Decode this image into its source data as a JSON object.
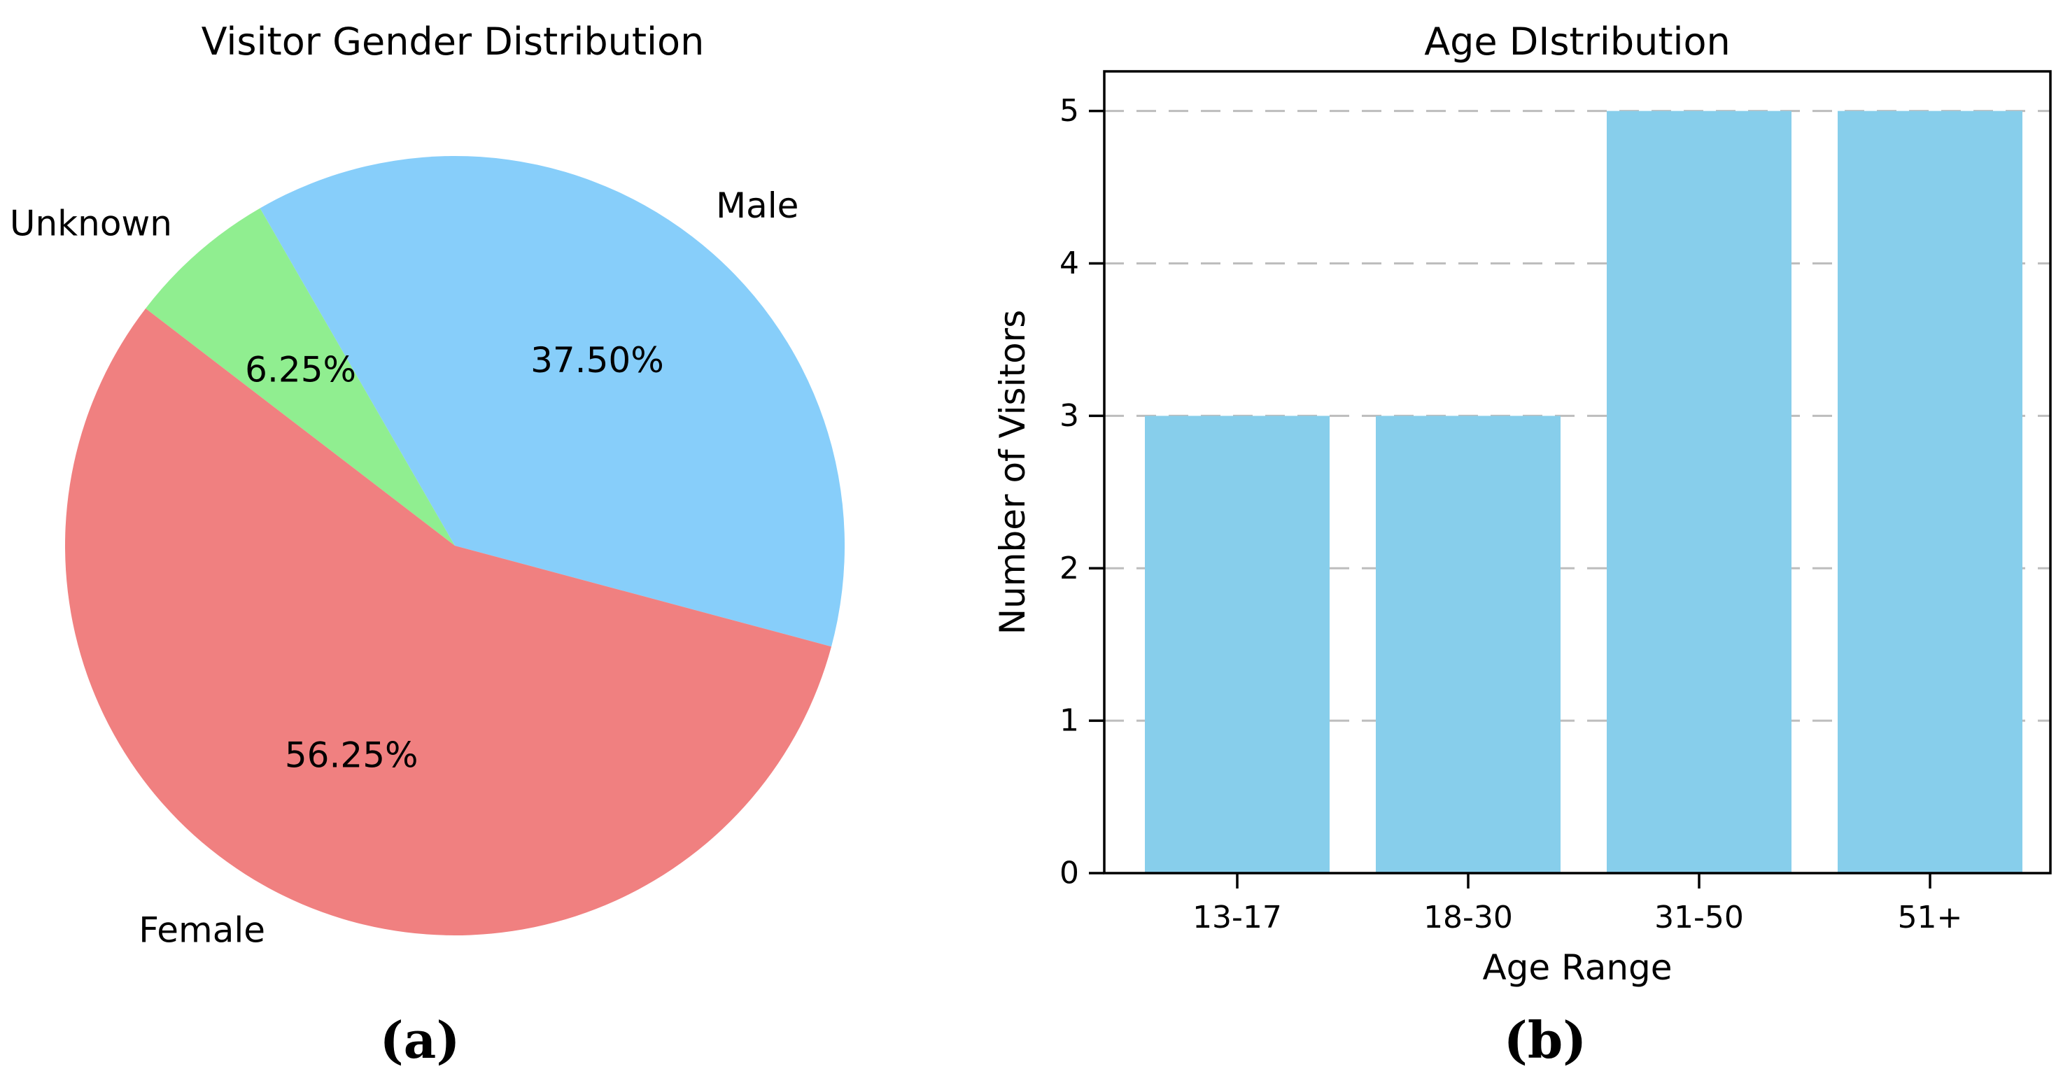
{
  "chart_data": [
    {
      "type": "pie",
      "panel": "left",
      "title": "Visitor Gender Distribution",
      "caption": "(a)",
      "start_angle_deg": -15,
      "direction": "counterclockwise",
      "label_distance": 1.1,
      "pct_distance": 0.6,
      "slices": [
        {
          "label": "Male",
          "value": 37.5,
          "pct_text": "37.50%",
          "color": "#87CEFA"
        },
        {
          "label": "Unknown",
          "value": 6.25,
          "pct_text": "6.25%",
          "color": "#90EE90"
        },
        {
          "label": "Female",
          "value": 56.25,
          "pct_text": "56.25%",
          "color": "#F08080"
        }
      ]
    },
    {
      "type": "bar",
      "panel": "right",
      "title": "Age DIstribution",
      "caption": "(b)",
      "xlabel": "Age Range",
      "ylabel": "Number of Visitors",
      "categories": [
        "13-17",
        "18-30",
        "31-50",
        "51+"
      ],
      "values": [
        3,
        3,
        5,
        5
      ],
      "yticks": [
        0,
        1,
        2,
        3,
        4,
        5
      ],
      "ylim": [
        0,
        5.26
      ],
      "bar_color": "#87CEEB",
      "grid": {
        "axis": "y",
        "style": "dashed",
        "color": "#bdbdbd"
      },
      "frame": "full-box",
      "text_color": "#000000"
    }
  ]
}
